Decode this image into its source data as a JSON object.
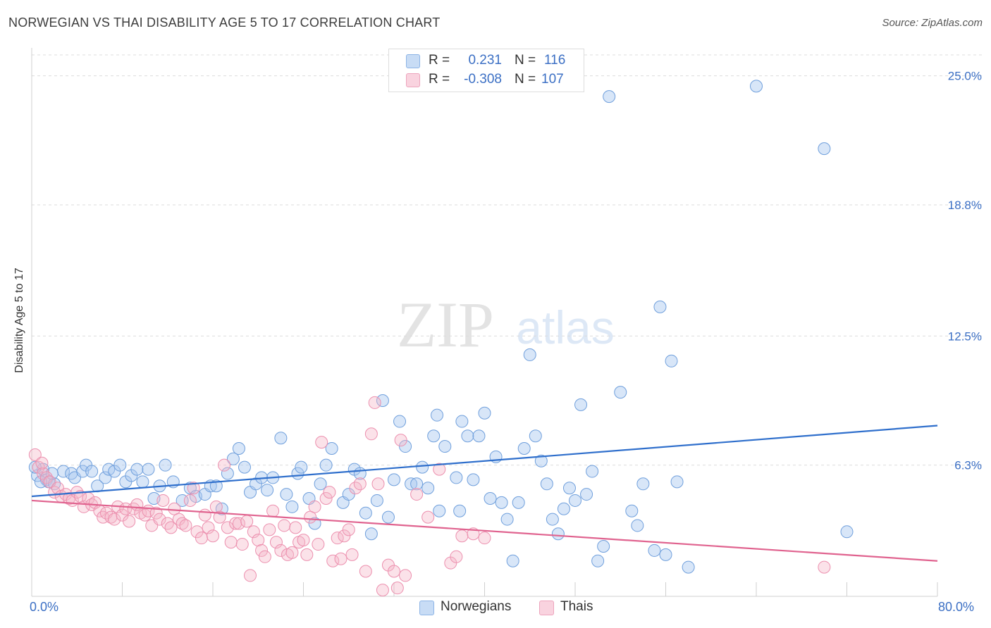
{
  "header": {
    "title": "NORWEGIAN VS THAI DISABILITY AGE 5 TO 17 CORRELATION CHART",
    "source": "Source: ZipAtlas.com"
  },
  "watermark": {
    "zip": "ZIP",
    "atlas": "atlas"
  },
  "legend": {
    "rows": [
      {
        "r_label": "R =",
        "r_value": "0.231",
        "n_label": "N =",
        "n_value": "116",
        "color": "#a9c8f0"
      },
      {
        "r_label": "R =",
        "r_value": "-0.308",
        "n_label": "N =",
        "n_value": "107",
        "color": "#f4b6c9"
      }
    ]
  },
  "bottom_legend": {
    "items": [
      {
        "label": "Norwegians",
        "color": "#a9c8f0"
      },
      {
        "label": "Thais",
        "color": "#f4b6c9"
      }
    ]
  },
  "chart_data": {
    "type": "scatter",
    "title": "NORWEGIAN VS THAI DISABILITY AGE 5 TO 17 CORRELATION CHART",
    "ylabel": "Disability Age 5 to 17",
    "xlabel": "",
    "xlim": [
      0,
      80
    ],
    "ylim": [
      0,
      26.0
    ],
    "x_tick_labels": [
      "0.0%",
      "80.0%"
    ],
    "y_ticks": [
      6.3,
      12.5,
      18.8,
      25.0
    ],
    "y_tick_labels": [
      "6.3%",
      "12.5%",
      "18.8%",
      "25.0%"
    ],
    "grid": true,
    "legend_position": "top-center",
    "series": [
      {
        "name": "Norwegians",
        "color": "#6f9fdc",
        "trend": {
          "x": [
            0,
            80
          ],
          "y": [
            4.8,
            8.2
          ]
        },
        "points": [
          [
            0.5,
            5.8
          ],
          [
            1,
            6.1
          ],
          [
            1.3,
            5.6
          ],
          [
            1.5,
            5.5
          ],
          [
            2,
            5.4
          ],
          [
            2.8,
            6
          ],
          [
            3.5,
            5.9
          ],
          [
            3.8,
            5.7
          ],
          [
            4.5,
            6
          ],
          [
            4.8,
            6.3
          ],
          [
            5.3,
            6
          ],
          [
            5.8,
            5.3
          ],
          [
            6.5,
            5.7
          ],
          [
            6.8,
            6.1
          ],
          [
            7.3,
            6
          ],
          [
            7.8,
            6.3
          ],
          [
            8.3,
            5.5
          ],
          [
            8.8,
            5.8
          ],
          [
            9.3,
            6.1
          ],
          [
            9.8,
            5.5
          ],
          [
            10.3,
            6.1
          ],
          [
            10.8,
            4.7
          ],
          [
            11.3,
            5.3
          ],
          [
            11.8,
            6.3
          ],
          [
            12.5,
            5.5
          ],
          [
            13.3,
            4.6
          ],
          [
            14,
            5.2
          ],
          [
            14.5,
            4.8
          ],
          [
            15.3,
            4.9
          ],
          [
            15.8,
            5.3
          ],
          [
            16.3,
            5.3
          ],
          [
            16.8,
            4.2
          ],
          [
            17.3,
            5.9
          ],
          [
            17.8,
            6.6
          ],
          [
            18.3,
            7.1
          ],
          [
            18.8,
            6.2
          ],
          [
            19.3,
            5
          ],
          [
            19.8,
            5.4
          ],
          [
            20.3,
            5.7
          ],
          [
            20.8,
            5.1
          ],
          [
            21.3,
            5.7
          ],
          [
            22,
            7.6
          ],
          [
            22.5,
            4.9
          ],
          [
            23,
            4.3
          ],
          [
            23.5,
            5.9
          ],
          [
            23.8,
            6.2
          ],
          [
            24.5,
            4.7
          ],
          [
            25,
            3.5
          ],
          [
            25.5,
            5.4
          ],
          [
            26,
            6.3
          ],
          [
            26.5,
            7.1
          ],
          [
            27.5,
            4.5
          ],
          [
            28,
            4.9
          ],
          [
            28.5,
            6.1
          ],
          [
            29,
            5.9
          ],
          [
            29.5,
            4
          ],
          [
            30,
            3
          ],
          [
            30.5,
            4.6
          ],
          [
            31,
            9.4
          ],
          [
            31.5,
            3.8
          ],
          [
            32,
            5.6
          ],
          [
            32.5,
            8.4
          ],
          [
            33,
            7.2
          ],
          [
            33.5,
            5.4
          ],
          [
            34,
            5.4
          ],
          [
            34.5,
            6.2
          ],
          [
            35,
            5.2
          ],
          [
            35.5,
            7.7
          ],
          [
            35.8,
            8.7
          ],
          [
            36,
            4.1
          ],
          [
            36.5,
            7.2
          ],
          [
            37.5,
            5.7
          ],
          [
            37.8,
            4.1
          ],
          [
            38,
            8.4
          ],
          [
            38.5,
            7.7
          ],
          [
            39,
            5.6
          ],
          [
            39.5,
            7.7
          ],
          [
            40,
            8.8
          ],
          [
            40.5,
            4.7
          ],
          [
            41,
            6.7
          ],
          [
            41.5,
            4.5
          ],
          [
            42,
            3.7
          ],
          [
            42.5,
            1.7
          ],
          [
            43,
            4.5
          ],
          [
            43.5,
            7.1
          ],
          [
            44,
            11.6
          ],
          [
            44.5,
            7.7
          ],
          [
            45,
            6.5
          ],
          [
            45.5,
            5.4
          ],
          [
            46,
            3.7
          ],
          [
            46.5,
            3
          ],
          [
            47,
            4.2
          ],
          [
            47.5,
            5.2
          ],
          [
            48,
            4.6
          ],
          [
            48.5,
            9.2
          ],
          [
            49,
            4.9
          ],
          [
            49.5,
            6
          ],
          [
            50,
            1.7
          ],
          [
            50.5,
            2.4
          ],
          [
            51,
            24
          ],
          [
            52,
            9.8
          ],
          [
            53,
            4.1
          ],
          [
            53.5,
            3.4
          ],
          [
            54,
            5.4
          ],
          [
            55,
            2.2
          ],
          [
            55.5,
            13.9
          ],
          [
            56,
            2
          ],
          [
            56.5,
            11.3
          ],
          [
            57,
            5.5
          ],
          [
            58,
            1.4
          ],
          [
            64,
            24.5
          ],
          [
            70,
            21.5
          ],
          [
            72,
            3.1
          ],
          [
            0.3,
            6.2
          ],
          [
            0.8,
            5.5
          ],
          [
            1.8,
            5.9
          ]
        ]
      },
      {
        "name": "Thais",
        "color": "#ec8fae",
        "trend": {
          "x": [
            0,
            80
          ],
          "y": [
            4.6,
            1.7
          ]
        },
        "points": [
          [
            0.3,
            6.8
          ],
          [
            0.6,
            6.2
          ],
          [
            1,
            5.9
          ],
          [
            1.3,
            5.7
          ],
          [
            1.6,
            5.5
          ],
          [
            2,
            5
          ],
          [
            2.3,
            5.2
          ],
          [
            2.6,
            4.8
          ],
          [
            3,
            4.9
          ],
          [
            3.3,
            4.7
          ],
          [
            3.6,
            4.6
          ],
          [
            4,
            5
          ],
          [
            4.3,
            4.8
          ],
          [
            4.6,
            4.3
          ],
          [
            5,
            4.7
          ],
          [
            5.3,
            4.4
          ],
          [
            5.6,
            4.5
          ],
          [
            6,
            4.1
          ],
          [
            6.3,
            3.8
          ],
          [
            6.6,
            4
          ],
          [
            7,
            3.8
          ],
          [
            7.3,
            3.7
          ],
          [
            7.6,
            4.3
          ],
          [
            8,
            3.9
          ],
          [
            8.3,
            4.2
          ],
          [
            8.6,
            3.6
          ],
          [
            9,
            4.2
          ],
          [
            9.3,
            4.4
          ],
          [
            9.6,
            4
          ],
          [
            10,
            3.9
          ],
          [
            10.3,
            4.1
          ],
          [
            10.6,
            3.4
          ],
          [
            11,
            4
          ],
          [
            11.3,
            3.7
          ],
          [
            11.6,
            4.6
          ],
          [
            12,
            3.5
          ],
          [
            12.3,
            3.3
          ],
          [
            12.6,
            4.2
          ],
          [
            13,
            3.7
          ],
          [
            13.3,
            3.5
          ],
          [
            13.6,
            3.4
          ],
          [
            14,
            4.6
          ],
          [
            14.3,
            5.2
          ],
          [
            14.6,
            3.1
          ],
          [
            15,
            2.8
          ],
          [
            15.3,
            3.9
          ],
          [
            15.6,
            3.3
          ],
          [
            16,
            2.9
          ],
          [
            16.3,
            4.3
          ],
          [
            16.6,
            3.8
          ],
          [
            17,
            6.3
          ],
          [
            17.3,
            3.3
          ],
          [
            17.6,
            2.6
          ],
          [
            18,
            3.5
          ],
          [
            18.3,
            3.5
          ],
          [
            18.6,
            2.5
          ],
          [
            19,
            3.6
          ],
          [
            19.3,
            1
          ],
          [
            19.6,
            3.1
          ],
          [
            20,
            2.7
          ],
          [
            20.3,
            2.2
          ],
          [
            20.6,
            1.9
          ],
          [
            21,
            3.2
          ],
          [
            21.3,
            4.1
          ],
          [
            21.6,
            2.6
          ],
          [
            22,
            2.2
          ],
          [
            22.3,
            3.4
          ],
          [
            22.6,
            2
          ],
          [
            23,
            2.1
          ],
          [
            23.3,
            3.3
          ],
          [
            23.6,
            2.6
          ],
          [
            24,
            2.7
          ],
          [
            24.3,
            2
          ],
          [
            24.6,
            3.8
          ],
          [
            25,
            4.3
          ],
          [
            25.3,
            2.5
          ],
          [
            25.6,
            7.4
          ],
          [
            26,
            4.7
          ],
          [
            26.3,
            5
          ],
          [
            26.6,
            1.7
          ],
          [
            27,
            2.8
          ],
          [
            27.3,
            1.8
          ],
          [
            27.6,
            2.9
          ],
          [
            28,
            3.2
          ],
          [
            28.3,
            2
          ],
          [
            28.6,
            5.2
          ],
          [
            29,
            5.4
          ],
          [
            29.5,
            1.2
          ],
          [
            30,
            7.8
          ],
          [
            30.3,
            9.3
          ],
          [
            30.6,
            5.4
          ],
          [
            31,
            0.3
          ],
          [
            31.5,
            1.5
          ],
          [
            32,
            1.2
          ],
          [
            32.3,
            0.4
          ],
          [
            32.6,
            7.5
          ],
          [
            33,
            1
          ],
          [
            34,
            4.9
          ],
          [
            35,
            3.8
          ],
          [
            36,
            6.1
          ],
          [
            37,
            1.6
          ],
          [
            37.5,
            1.9
          ],
          [
            38,
            2.9
          ],
          [
            39,
            3
          ],
          [
            40,
            2.8
          ],
          [
            70,
            1.4
          ],
          [
            0.9,
            6.4
          ]
        ]
      }
    ]
  }
}
